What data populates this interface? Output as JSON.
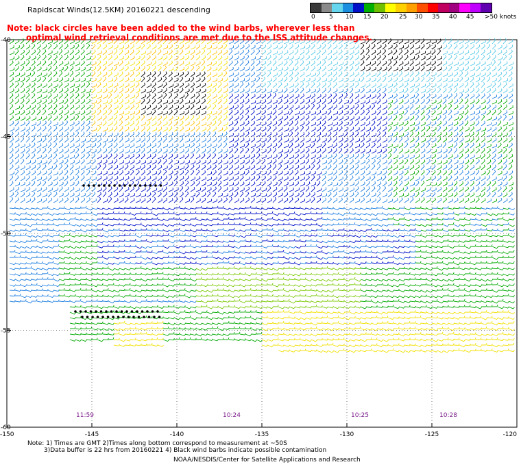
{
  "title": "Rapidscat Winds(12.5KM) 20160221 descending",
  "note": {
    "line1": "Note: black circles have been added to the wind barbs, wherever less than",
    "line2": "optimal wind retrieval conditions are met due to the ISS attitude changes."
  },
  "legend": {
    "labels": [
      "0",
      "5",
      "10",
      "15",
      "20",
      "25",
      "30",
      "35",
      "40",
      "45",
      ">50 knots"
    ],
    "colors": [
      "#3a3a3a",
      "#8a8a8a",
      "#66d6ee",
      "#1a8fe0",
      "#0010c8",
      "#00b000",
      "#70c000",
      "#ffff00",
      "#ffd000",
      "#ffa000",
      "#ff5000",
      "#ff0000",
      "#c00060",
      "#a00080",
      "#ff00ff",
      "#c000ff",
      "#6000b0"
    ]
  },
  "axes": {
    "lat_labels": [
      "-40",
      "-45",
      "-50",
      "-55",
      "-60"
    ],
    "lon_labels": [
      "-150",
      "-145",
      "-140",
      "-135",
      "-130",
      "-125",
      "-120"
    ]
  },
  "times": [
    "11:59",
    "10:24",
    "10:25",
    "10:28"
  ],
  "footer": {
    "line1": "Note: 1) Times are GMT 2)Times along bottom correspond to measurement at ~50S",
    "line2": "3)Data buffer is 22 hrs from 20160221 4) Black wind barbs indicate possible contamination",
    "line3": "NOAA/NESDIS/Center for Satellite Applications and Research"
  }
}
